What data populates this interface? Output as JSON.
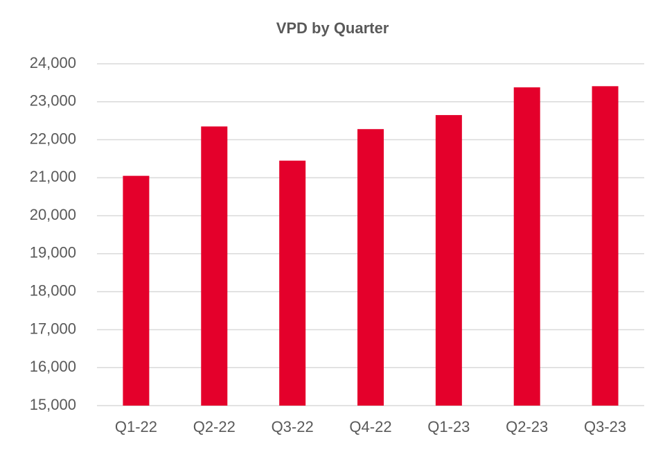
{
  "chart_data": {
    "type": "bar",
    "title": "VPD by Quarter",
    "categories": [
      "Q1-22",
      "Q2-22",
      "Q3-22",
      "Q4-22",
      "Q1-23",
      "Q2-23",
      "Q3-23"
    ],
    "values": [
      21050,
      22350,
      21450,
      22280,
      22650,
      23380,
      23410
    ],
    "color": "#e4002b",
    "ylim": [
      15000,
      24000
    ],
    "yticks": [
      {
        "value": 15000,
        "label": "15,000"
      },
      {
        "value": 16000,
        "label": "16,000"
      },
      {
        "value": 17000,
        "label": "17,000"
      },
      {
        "value": 18000,
        "label": "18,000"
      },
      {
        "value": 19000,
        "label": "19,000"
      },
      {
        "value": 20000,
        "label": "20,000"
      },
      {
        "value": 21000,
        "label": "21,000"
      },
      {
        "value": 22000,
        "label": "22,000"
      },
      {
        "value": 23000,
        "label": "23,000"
      },
      {
        "value": 24000,
        "label": "24,000"
      }
    ],
    "grid": true
  }
}
